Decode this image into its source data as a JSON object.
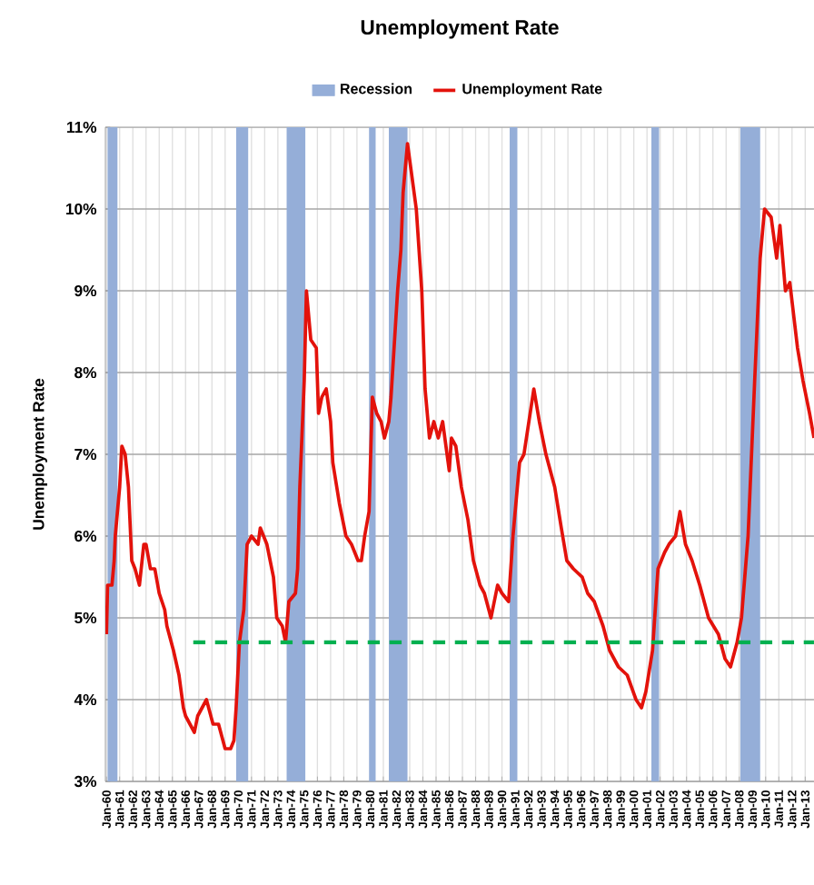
{
  "chart_data": {
    "type": "line",
    "title": "Unemployment Rate",
    "ylabel": "Unemployment Rate",
    "legend": "top",
    "grid": true,
    "xlim": [
      "1959-12",
      "2013-09"
    ],
    "ylim": [
      3,
      11
    ],
    "yticks": [
      {
        "value": 3,
        "label": "3%"
      },
      {
        "value": 4,
        "label": "4%"
      },
      {
        "value": 5,
        "label": "5%"
      },
      {
        "value": 6,
        "label": "6%"
      },
      {
        "value": 7,
        "label": "7%"
      },
      {
        "value": 8,
        "label": "8%"
      },
      {
        "value": 9,
        "label": "9%"
      },
      {
        "value": 10,
        "label": "10%"
      },
      {
        "value": 11,
        "label": "11%"
      }
    ],
    "xticks": [
      {
        "value": "1960-01",
        "label": "Jan-60"
      },
      {
        "value": "1961-01",
        "label": "Jan-61"
      },
      {
        "value": "1962-01",
        "label": "Jan-62"
      },
      {
        "value": "1963-01",
        "label": "Jan-63"
      },
      {
        "value": "1964-01",
        "label": "Jan-64"
      },
      {
        "value": "1965-01",
        "label": "Jan-65"
      },
      {
        "value": "1966-01",
        "label": "Jan-66"
      },
      {
        "value": "1967-01",
        "label": "Jan-67"
      },
      {
        "value": "1968-01",
        "label": "Jan-68"
      },
      {
        "value": "1969-01",
        "label": "Jan-69"
      },
      {
        "value": "1970-01",
        "label": "Jan-70"
      },
      {
        "value": "1971-01",
        "label": "Jan-71"
      },
      {
        "value": "1972-01",
        "label": "Jan-72"
      },
      {
        "value": "1973-01",
        "label": "Jan-73"
      },
      {
        "value": "1974-01",
        "label": "Jan-74"
      },
      {
        "value": "1975-01",
        "label": "Jan-75"
      },
      {
        "value": "1976-01",
        "label": "Jan-76"
      },
      {
        "value": "1977-01",
        "label": "Jan-77"
      },
      {
        "value": "1978-01",
        "label": "Jan-78"
      },
      {
        "value": "1979-01",
        "label": "Jan-79"
      },
      {
        "value": "1980-01",
        "label": "Jan-80"
      },
      {
        "value": "1981-01",
        "label": "Jan-81"
      },
      {
        "value": "1982-01",
        "label": "Jan-82"
      },
      {
        "value": "1983-01",
        "label": "Jan-83"
      },
      {
        "value": "1984-01",
        "label": "Jan-84"
      },
      {
        "value": "1985-01",
        "label": "Jan-85"
      },
      {
        "value": "1986-01",
        "label": "Jan-86"
      },
      {
        "value": "1987-01",
        "label": "Jan-87"
      },
      {
        "value": "1988-01",
        "label": "Jan-88"
      },
      {
        "value": "1989-01",
        "label": "Jan-89"
      },
      {
        "value": "1990-01",
        "label": "Jan-90"
      },
      {
        "value": "1991-01",
        "label": "Jan-91"
      },
      {
        "value": "1992-01",
        "label": "Jan-92"
      },
      {
        "value": "1993-01",
        "label": "Jan-93"
      },
      {
        "value": "1994-01",
        "label": "Jan-94"
      },
      {
        "value": "1995-01",
        "label": "Jan-95"
      },
      {
        "value": "1996-01",
        "label": "Jan-96"
      },
      {
        "value": "1997-01",
        "label": "Jan-97"
      },
      {
        "value": "1998-01",
        "label": "Jan-98"
      },
      {
        "value": "1999-01",
        "label": "Jan-99"
      },
      {
        "value": "2000-01",
        "label": "Jan-00"
      },
      {
        "value": "2001-01",
        "label": "Jan-01"
      },
      {
        "value": "2002-01",
        "label": "Jan-02"
      },
      {
        "value": "2003-01",
        "label": "Jan-03"
      },
      {
        "value": "2004-01",
        "label": "Jan-04"
      },
      {
        "value": "2005-01",
        "label": "Jan-05"
      },
      {
        "value": "2006-01",
        "label": "Jan-06"
      },
      {
        "value": "2007-01",
        "label": "Jan-07"
      },
      {
        "value": "2008-01",
        "label": "Jan-08"
      },
      {
        "value": "2009-01",
        "label": "Jan-09"
      },
      {
        "value": "2010-01",
        "label": "Jan-10"
      },
      {
        "value": "2011-01",
        "label": "Jan-11"
      },
      {
        "value": "2012-01",
        "label": "Jan-12"
      },
      {
        "value": "2013-01",
        "label": "Jan-13"
      }
    ],
    "bands": [
      {
        "axis": "x",
        "from": "1960-02",
        "to": "1960-11",
        "label": "Recession",
        "color": "#95aed8"
      },
      {
        "axis": "x",
        "from": "1969-11",
        "to": "1970-10",
        "color": "#95aed8"
      },
      {
        "axis": "x",
        "from": "1973-09",
        "to": "1975-02",
        "color": "#95aed8"
      },
      {
        "axis": "x",
        "from": "1979-12",
        "to": "1980-06",
        "color": "#95aed8"
      },
      {
        "axis": "x",
        "from": "1981-06",
        "to": "1982-11",
        "color": "#95aed8"
      },
      {
        "axis": "x",
        "from": "1990-08",
        "to": "1991-03",
        "color": "#95aed8"
      },
      {
        "axis": "x",
        "from": "2001-05",
        "to": "2001-12",
        "color": "#95aed8"
      },
      {
        "axis": "x",
        "from": "2008-02",
        "to": "2009-08",
        "color": "#95aed8"
      }
    ],
    "series": [
      {
        "name": "Unemployment Rate",
        "color": "#e3120b",
        "x": [
          "1960-01",
          "1960-02",
          "1960-06",
          "1960-08",
          "1960-09",
          "1961-01",
          "1961-03",
          "1961-06",
          "1961-09",
          "1961-12",
          "1962-03",
          "1962-07",
          "1962-11",
          "1963-01",
          "1963-05",
          "1963-09",
          "1964-01",
          "1964-06",
          "1964-08",
          "1965-02",
          "1965-07",
          "1965-11",
          "1966-01",
          "1966-09",
          "1966-12",
          "1967-08",
          "1968-02",
          "1968-07",
          "1969-01",
          "1969-06",
          "1969-09",
          "1969-11",
          "1970-02",
          "1970-06",
          "1970-09",
          "1971-01",
          "1971-07",
          "1971-09",
          "1972-03",
          "1972-09",
          "1972-12",
          "1973-05",
          "1973-08",
          "1973-11",
          "1974-05",
          "1974-07",
          "1974-09",
          "1975-01",
          "1975-03",
          "1975-07",
          "1975-12",
          "1976-02",
          "1976-05",
          "1976-09",
          "1977-01",
          "1977-03",
          "1977-09",
          "1978-03",
          "1978-08",
          "1979-02",
          "1979-05",
          "1979-08",
          "1979-12",
          "1980-03",
          "1980-07",
          "1980-11",
          "1981-02",
          "1981-06",
          "1981-08",
          "1982-02",
          "1982-05",
          "1982-07",
          "1982-11",
          "1983-02",
          "1983-07",
          "1983-12",
          "1984-03",
          "1984-07",
          "1984-11",
          "1985-03",
          "1985-07",
          "1986-01",
          "1986-03",
          "1986-07",
          "1986-12",
          "1987-06",
          "1987-11",
          "1988-05",
          "1988-09",
          "1989-03",
          "1989-09",
          "1990-01",
          "1990-07",
          "1990-11",
          "1991-05",
          "1991-09",
          "1992-06",
          "1992-11",
          "1993-05",
          "1994-01",
          "1994-07",
          "1994-12",
          "1995-06",
          "1996-02",
          "1996-07",
          "1997-01",
          "1997-09",
          "1998-03",
          "1998-11",
          "1999-07",
          "2000-03",
          "2000-08",
          "2000-12",
          "2001-06",
          "2001-11",
          "2002-05",
          "2002-09",
          "2003-03",
          "2003-07",
          "2003-12",
          "2004-06",
          "2005-01",
          "2005-09",
          "2006-06",
          "2006-12",
          "2007-05",
          "2007-11",
          "2008-03",
          "2008-09",
          "2009-03",
          "2009-08",
          "2009-12",
          "2010-06",
          "2010-11",
          "2011-02",
          "2011-07",
          "2011-11",
          "2012-06",
          "2012-11",
          "2013-05",
          "2013-09"
        ],
        "values": [
          4.8,
          5.4,
          5.4,
          5.7,
          6.0,
          6.6,
          7.1,
          7.0,
          6.6,
          5.7,
          5.6,
          5.4,
          5.9,
          5.9,
          5.6,
          5.6,
          5.3,
          5.1,
          4.9,
          4.6,
          4.3,
          3.9,
          3.8,
          3.6,
          3.8,
          4.0,
          3.7,
          3.7,
          3.4,
          3.4,
          3.5,
          3.9,
          4.7,
          5.1,
          5.9,
          6.0,
          5.9,
          6.1,
          5.9,
          5.5,
          5.0,
          4.9,
          4.7,
          5.2,
          5.3,
          5.6,
          6.6,
          7.9,
          9.0,
          8.4,
          8.3,
          7.5,
          7.7,
          7.8,
          7.4,
          6.9,
          6.4,
          6.0,
          5.9,
          5.7,
          5.7,
          6.0,
          6.3,
          7.7,
          7.5,
          7.4,
          7.2,
          7.4,
          7.7,
          9.0,
          9.5,
          10.2,
          10.8,
          10.5,
          10.0,
          9.0,
          7.8,
          7.2,
          7.4,
          7.2,
          7.4,
          6.8,
          7.2,
          7.1,
          6.6,
          6.2,
          5.7,
          5.4,
          5.3,
          5.0,
          5.4,
          5.3,
          5.2,
          6.0,
          6.9,
          7.0,
          7.8,
          7.4,
          7.0,
          6.6,
          6.1,
          5.7,
          5.6,
          5.5,
          5.3,
          5.2,
          4.9,
          4.6,
          4.4,
          4.3,
          4.0,
          3.9,
          4.1,
          4.6,
          5.6,
          5.8,
          5.9,
          6.0,
          6.3,
          5.9,
          5.7,
          5.4,
          5.0,
          4.8,
          4.5,
          4.4,
          4.7,
          5.0,
          6.0,
          7.9,
          9.4,
          10.0,
          9.9,
          9.4,
          9.8,
          9.0,
          9.1,
          8.3,
          7.9,
          7.5,
          7.2
        ]
      },
      {
        "color": "#00b050",
        "line_style": "dashed",
        "x": [
          "1966-08",
          "2013-09"
        ],
        "values": [
          4.7,
          4.7
        ]
      }
    ]
  }
}
